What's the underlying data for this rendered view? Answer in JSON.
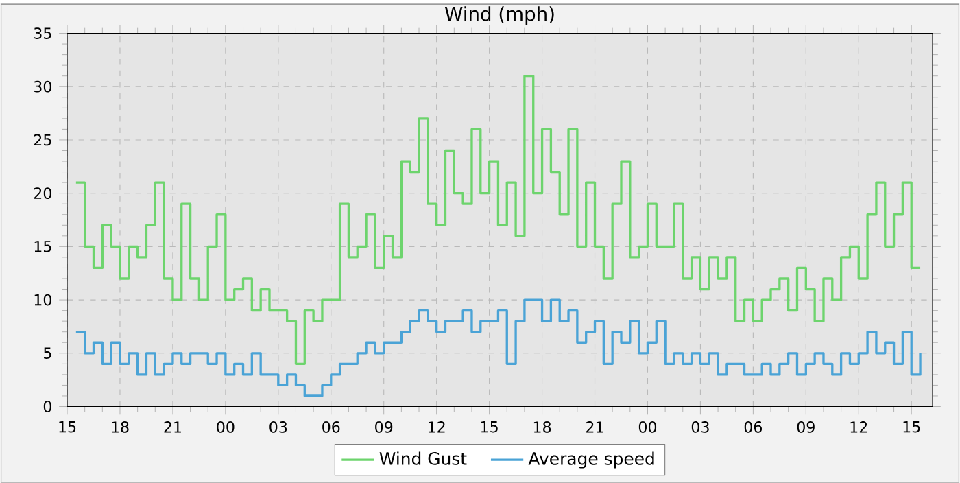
{
  "chart_data": {
    "type": "step",
    "title": "Wind (mph)",
    "x": [
      15.5,
      16,
      16.5,
      17,
      17.5,
      18,
      18.5,
      19,
      19.5,
      20,
      20.5,
      21,
      21.5,
      22,
      22.5,
      23,
      23.5,
      24,
      24.5,
      25,
      25.5,
      26,
      26.5,
      27,
      27.5,
      28,
      28.5,
      29,
      29.5,
      30,
      30.5,
      31,
      31.5,
      32,
      32.5,
      33,
      33.5,
      34,
      34.5,
      35,
      35.5,
      36,
      36.5,
      37,
      37.5,
      38,
      38.5,
      39,
      39.5,
      40,
      40.5,
      41,
      41.5,
      42,
      42.5,
      43,
      43.5,
      44,
      44.5,
      45,
      45.5,
      46,
      46.5,
      47,
      47.5,
      48,
      48.5,
      49,
      49.5,
      50,
      50.5,
      51,
      51.5,
      52,
      52.5,
      53,
      53.5,
      54,
      54.5,
      55,
      55.5,
      56,
      56.5,
      57,
      57.5,
      58,
      58.5,
      59,
      59.5,
      60,
      60.5,
      61,
      61.5,
      62,
      62.5,
      63,
      63.5
    ],
    "series": [
      {
        "name": "Wind Gust",
        "color": "#6dd46d",
        "values": [
          21,
          15,
          13,
          17,
          15,
          12,
          15,
          14,
          17,
          21,
          12,
          10,
          19,
          12,
          10,
          15,
          18,
          10,
          11,
          12,
          9,
          11,
          9,
          9,
          8,
          4,
          9,
          8,
          10,
          10,
          19,
          14,
          15,
          18,
          13,
          16,
          14,
          23,
          22,
          27,
          19,
          17,
          24,
          20,
          19,
          26,
          20,
          23,
          17,
          21,
          16,
          31,
          20,
          26,
          22,
          18,
          26,
          15,
          21,
          15,
          12,
          19,
          23,
          14,
          15,
          19,
          15,
          15,
          19,
          12,
          14,
          11,
          14,
          12,
          14,
          8,
          10,
          8,
          10,
          11,
          12,
          9,
          13,
          11,
          8,
          12,
          10,
          14,
          15,
          12,
          18,
          21,
          15,
          18,
          21,
          13,
          13
        ]
      },
      {
        "name": "Average speed",
        "color": "#4aa3d6",
        "values": [
          7,
          5,
          6,
          4,
          6,
          4,
          5,
          3,
          5,
          3,
          4,
          5,
          4,
          5,
          5,
          4,
          5,
          3,
          4,
          3,
          5,
          3,
          3,
          2,
          3,
          2,
          1,
          1,
          2,
          3,
          4,
          4,
          5,
          6,
          5,
          6,
          6,
          7,
          8,
          9,
          8,
          7,
          8,
          8,
          9,
          7,
          8,
          8,
          9,
          4,
          8,
          10,
          10,
          8,
          10,
          8,
          9,
          6,
          7,
          8,
          4,
          7,
          6,
          8,
          5,
          6,
          8,
          4,
          5,
          4,
          5,
          4,
          5,
          3,
          4,
          4,
          3,
          3,
          4,
          3,
          4,
          5,
          3,
          4,
          5,
          4,
          3,
          5,
          4,
          5,
          7,
          5,
          6,
          4,
          7,
          3,
          5
        ]
      }
    ],
    "xlim": [
      15,
      64.2
    ],
    "ylim": [
      0,
      35
    ],
    "xticks": [
      {
        "value": 15,
        "label": "15"
      },
      {
        "value": 18,
        "label": "18"
      },
      {
        "value": 21,
        "label": "21"
      },
      {
        "value": 24,
        "label": "00"
      },
      {
        "value": 27,
        "label": "03"
      },
      {
        "value": 30,
        "label": "06"
      },
      {
        "value": 33,
        "label": "09"
      },
      {
        "value": 36,
        "label": "12"
      },
      {
        "value": 39,
        "label": "15"
      },
      {
        "value": 42,
        "label": "18"
      },
      {
        "value": 45,
        "label": "21"
      },
      {
        "value": 48,
        "label": "00"
      },
      {
        "value": 51,
        "label": "03"
      },
      {
        "value": 54,
        "label": "06"
      },
      {
        "value": 57,
        "label": "09"
      },
      {
        "value": 60,
        "label": "12"
      },
      {
        "value": 63,
        "label": "15"
      }
    ],
    "yticks": [
      0,
      5,
      10,
      15,
      20,
      25,
      30,
      35
    ],
    "grid": true,
    "legend": "bottom"
  }
}
